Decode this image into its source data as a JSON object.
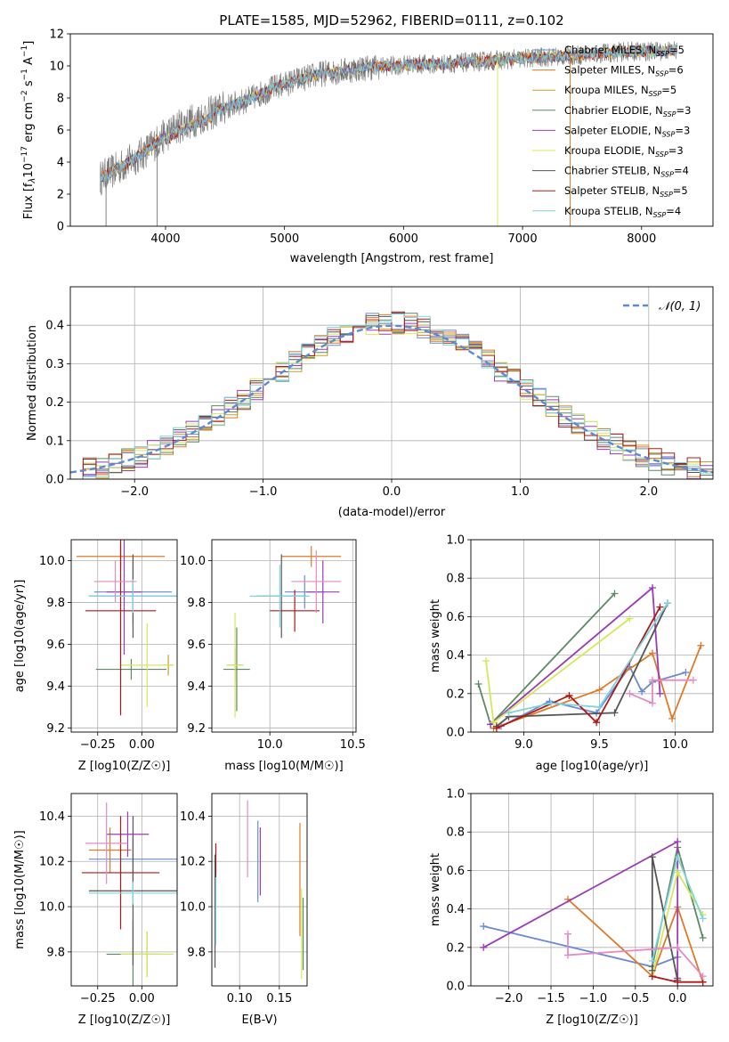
{
  "colors": {
    "Chabrier MILES": "#6a8ad6",
    "Salpeter MILES": "#e07a28",
    "Kroupa MILES": "#c9a227",
    "Chabrier ELODIE": "#5c8a63",
    "Salpeter ELODIE": "#9b3bb5",
    "Kroupa ELODIE": "#d5e85a",
    "Chabrier STELIB": "#555555",
    "Salpeter STELIB": "#b01818",
    "Kroupa STELIB": "#7fd4dc",
    "normal": "#5b8ad6",
    "extra_pink": "#e58ac3"
  },
  "chart_data": [
    {
      "id": "spectrum",
      "type": "line",
      "title": "PLATE=1585, MJD=52962, FIBERID=0111, z=0.102",
      "xlabel": "wavelength [Angstrom, rest frame]",
      "ylabel": "Flux [fλ10^-17 erg cm^-2 s^-1 A^-1]",
      "xlim": [
        3200,
        8600
      ],
      "ylim": [
        0,
        12
      ],
      "xticks": [
        4000,
        5000,
        6000,
        7000,
        8000
      ],
      "yticks": [
        0,
        2,
        4,
        6,
        8,
        10,
        12
      ],
      "grid": false,
      "legend_placement": "top-right",
      "legend": [
        {
          "series": "Chabrier MILES",
          "label": "Chabrier MILES, N",
          "sub": "SSP",
          "tail": "=5"
        },
        {
          "series": "Salpeter MILES",
          "label": "Salpeter MILES, N",
          "sub": "SSP",
          "tail": "=6"
        },
        {
          "series": "Kroupa MILES",
          "label": "Kroupa MILES, N",
          "sub": "SSP",
          "tail": "=5"
        },
        {
          "series": "Chabrier ELODIE",
          "label": "Chabrier ELODIE, N",
          "sub": "SSP",
          "tail": "=3"
        },
        {
          "series": "Salpeter ELODIE",
          "label": "Salpeter ELODIE, N",
          "sub": "SSP",
          "tail": "=3"
        },
        {
          "series": "Kroupa ELODIE",
          "label": "Kroupa ELODIE, N",
          "sub": "SSP",
          "tail": "=3"
        },
        {
          "series": "Chabrier STELIB",
          "label": "Chabrier STELIB, N",
          "sub": "SSP",
          "tail": "=4"
        },
        {
          "series": "Salpeter STELIB",
          "label": "Salpeter STELIB, N",
          "sub": "SSP",
          "tail": "=5"
        },
        {
          "series": "Kroupa STELIB",
          "label": "Kroupa STELIB, N",
          "sub": "SSP",
          "tail": "=4"
        }
      ],
      "data_trend": {
        "x": [
          3450,
          3600,
          3800,
          3950,
          4100,
          4300,
          4500,
          4700,
          4900,
          5100,
          5300,
          5500,
          5700,
          5900,
          6100,
          6300,
          6500,
          6700,
          6900,
          7100,
          7300,
          7500,
          7700,
          7900,
          8100,
          8300
        ],
        "y": [
          3.0,
          3.6,
          4.5,
          5.4,
          6.2,
          6.8,
          7.4,
          7.9,
          8.6,
          9.1,
          9.5,
          9.7,
          9.9,
          10.0,
          10.1,
          10.1,
          10.2,
          10.3,
          10.4,
          10.5,
          10.6,
          10.7,
          10.8,
          10.9,
          10.9,
          11.0
        ]
      }
    },
    {
      "id": "residuals",
      "type": "line",
      "xlabel": "(data-model)/error",
      "ylabel": "Normed distribution",
      "xlim": [
        -2.5,
        2.5
      ],
      "ylim": [
        0,
        0.5
      ],
      "xticks": [
        -2,
        -1,
        0,
        1,
        2
      ],
      "yticks": [
        0.0,
        0.1,
        0.2,
        0.3,
        0.4
      ],
      "grid": true,
      "legend_placement": "top-right",
      "legend": [
        {
          "series": "normal",
          "label": "𝒩(0, 1)"
        }
      ],
      "note": "step histograms of the nine models plus a dashed N(0,1) curve"
    },
    {
      "id": "z-age",
      "type": "scatter",
      "xlabel": "Z [log10(Z/Z☉)]",
      "ylabel": "age  [log10(age/yr)]",
      "xlim": [
        -0.4,
        0.2
      ],
      "ylim": [
        9.18,
        10.1
      ],
      "xticks": [
        -0.25,
        0.0
      ],
      "yticks": [
        9.2,
        9.4,
        9.6,
        9.8,
        10.0
      ],
      "grid": true,
      "errorbars": [
        {
          "series": "Chabrier MILES",
          "x": -0.05,
          "xerr": 0.22,
          "y": 9.85,
          "yerr": 0.15
        },
        {
          "series": "Salpeter MILES",
          "x": -0.12,
          "xerr": 0.25,
          "y": 10.02,
          "yerr": 0.05
        },
        {
          "series": "Kroupa MILES",
          "x": 0.15,
          "xerr": 0.03,
          "y": 9.5,
          "yerr": 0.05
        },
        {
          "series": "Chabrier ELODIE",
          "x": -0.06,
          "xerr": 0.2,
          "y": 9.48,
          "yerr": 0.05
        },
        {
          "series": "Salpeter ELODIE",
          "x": -0.1,
          "xerr": 0.1,
          "y": 9.85,
          "yerr": 0.3
        },
        {
          "series": "Kroupa ELODIE",
          "x": 0.03,
          "xerr": 0.15,
          "y": 9.5,
          "yerr": 0.2
        },
        {
          "series": "Chabrier STELIB",
          "x": -0.05,
          "xerr": 0.25,
          "y": 9.83,
          "yerr": 0.2
        },
        {
          "series": "Salpeter STELIB",
          "x": -0.12,
          "xerr": 0.2,
          "y": 9.76,
          "yerr": 0.5
        },
        {
          "series": "Kroupa STELIB",
          "x": -0.05,
          "xerr": 0.25,
          "y": 9.83,
          "yerr": 0.08
        },
        {
          "series": "extra_pink",
          "x": -0.15,
          "xerr": 0.12,
          "y": 9.9,
          "yerr": 0.1
        }
      ]
    },
    {
      "id": "mass-age",
      "type": "scatter",
      "xlabel": "mass [log10(M/M☉)]",
      "ylabel": "",
      "xlim": [
        9.65,
        10.52
      ],
      "ylim": [
        9.18,
        10.1
      ],
      "xticks": [
        10.0,
        10.5
      ],
      "yticks": [
        9.2,
        9.4,
        9.6,
        9.8,
        10.0
      ],
      "grid": true,
      "errorbars": [
        {
          "series": "Chabrier MILES",
          "x": 10.21,
          "xerr": 0.12,
          "y": 9.85,
          "yerr": 0.08
        },
        {
          "series": "Salpeter MILES",
          "x": 10.25,
          "xerr": 0.18,
          "y": 10.02,
          "yerr": 0.05
        },
        {
          "series": "Kroupa MILES",
          "x": 9.79,
          "xerr": 0.05,
          "y": 9.5,
          "yerr": 0.08
        },
        {
          "series": "Chabrier ELODIE",
          "x": 9.8,
          "xerr": 0.08,
          "y": 9.48,
          "yerr": 0.2
        },
        {
          "series": "Salpeter ELODIE",
          "x": 10.32,
          "xerr": 0.1,
          "y": 9.85,
          "yerr": 0.15
        },
        {
          "series": "Kroupa ELODIE",
          "x": 9.79,
          "xerr": 0.05,
          "y": 9.5,
          "yerr": 0.25
        },
        {
          "series": "Chabrier STELIB",
          "x": 10.07,
          "xerr": 0.15,
          "y": 9.83,
          "yerr": 0.2
        },
        {
          "series": "Salpeter STELIB",
          "x": 10.15,
          "xerr": 0.15,
          "y": 9.76,
          "yerr": 0.1
        },
        {
          "series": "Kroupa STELIB",
          "x": 10.06,
          "xerr": 0.18,
          "y": 9.83,
          "yerr": 0.15
        },
        {
          "series": "extra_pink",
          "x": 10.28,
          "xerr": 0.15,
          "y": 9.9,
          "yerr": 0.15
        }
      ]
    },
    {
      "id": "age-weight",
      "type": "line",
      "xlabel": "age  [log10(age/yr)]",
      "ylabel": "mass weight",
      "xlim": [
        8.65,
        10.25
      ],
      "ylim": [
        0,
        1.0
      ],
      "xticks": [
        9.0,
        9.5,
        10.0
      ],
      "yticks": [
        0.0,
        0.2,
        0.4,
        0.6,
        0.8,
        1.0
      ],
      "grid": true,
      "series": [
        {
          "series": "Chabrier MILES",
          "x": [
            8.85,
            9.17,
            9.48,
            9.7,
            9.78,
            9.85,
            10.07
          ],
          "y": [
            0.03,
            0.16,
            0.1,
            0.34,
            0.21,
            0.26,
            0.31
          ]
        },
        {
          "series": "Salpeter MILES",
          "x": [
            8.8,
            9.5,
            9.85,
            9.98,
            10.17
          ],
          "y": [
            0.02,
            0.22,
            0.41,
            0.07,
            0.45
          ]
        },
        {
          "series": "Chabrier ELODIE",
          "x": [
            8.7,
            8.78,
            9.6
          ],
          "y": [
            0.25,
            0.04,
            0.72
          ]
        },
        {
          "series": "Salpeter ELODIE",
          "x": [
            8.78,
            9.85,
            9.9
          ],
          "y": [
            0.04,
            0.75,
            0.2
          ]
        },
        {
          "series": "Kroupa ELODIE",
          "x": [
            8.75,
            8.8,
            9.7
          ],
          "y": [
            0.37,
            0.05,
            0.59
          ]
        },
        {
          "series": "Chabrier STELIB",
          "x": [
            8.82,
            8.9,
            9.6,
            9.95
          ],
          "y": [
            0.03,
            0.08,
            0.1,
            0.67
          ]
        },
        {
          "series": "Salpeter STELIB",
          "x": [
            8.82,
            9.3,
            9.48,
            9.9
          ],
          "y": [
            0.02,
            0.19,
            0.05,
            0.65
          ]
        },
        {
          "series": "Kroupa STELIB",
          "x": [
            8.9,
            9.18,
            9.5,
            9.95
          ],
          "y": [
            0.1,
            0.15,
            0.13,
            0.67
          ]
        },
        {
          "series": "extra_pink",
          "x": [
            9.7,
            9.85,
            9.85,
            10.12
          ],
          "y": [
            0.2,
            0.15,
            0.27,
            0.27
          ]
        }
      ]
    },
    {
      "id": "z-mass",
      "type": "scatter",
      "xlabel": "Z [log10(Z/Z☉)]",
      "ylabel": "mass [log10(M/M☉)]",
      "xlim": [
        -0.4,
        0.2
      ],
      "ylim": [
        9.65,
        10.5
      ],
      "xticks": [
        -0.25,
        0.0
      ],
      "yticks": [
        9.8,
        10.0,
        10.2,
        10.4
      ],
      "grid": true,
      "errorbars": [
        {
          "series": "Chabrier MILES",
          "x": -0.05,
          "xerr": 0.25,
          "y": 10.21,
          "yerr": 0.1
        },
        {
          "series": "Salpeter MILES",
          "x": -0.18,
          "xerr": 0.12,
          "y": 10.25,
          "yerr": 0.1
        },
        {
          "series": "Kroupa MILES",
          "x": 0.03,
          "xerr": 0.15,
          "y": 9.79,
          "yerr": 0.1
        },
        {
          "series": "Chabrier ELODIE",
          "x": -0.05,
          "xerr": 0.15,
          "y": 9.79,
          "yerr": 0.15
        },
        {
          "series": "Salpeter ELODIE",
          "x": -0.08,
          "xerr": 0.12,
          "y": 10.32,
          "yerr": 0.1
        },
        {
          "series": "Kroupa ELODIE",
          "x": 0.03,
          "xerr": 0.15,
          "y": 9.79,
          "yerr": 0.1
        },
        {
          "series": "Chabrier STELIB",
          "x": -0.05,
          "xerr": 0.25,
          "y": 10.07,
          "yerr": 0.33
        },
        {
          "series": "Salpeter STELIB",
          "x": -0.12,
          "xerr": 0.22,
          "y": 10.15,
          "yerr": 0.25
        },
        {
          "series": "Kroupa STELIB",
          "x": -0.05,
          "xerr": 0.25,
          "y": 10.06,
          "yerr": 0.05
        },
        {
          "series": "extra_pink",
          "x": -0.2,
          "xerr": 0.12,
          "y": 10.28,
          "yerr": 0.18
        }
      ]
    },
    {
      "id": "ebv-mass",
      "type": "scatter",
      "xlabel": "E(B-V)",
      "ylabel": "",
      "xlim": [
        0.065,
        0.185
      ],
      "ylim": [
        9.65,
        10.5
      ],
      "xticks": [
        0.1,
        0.15
      ],
      "yticks": [
        9.8,
        10.0,
        10.2,
        10.4
      ],
      "grid": true,
      "errorbars": [
        {
          "series": "Salpeter MILES",
          "x": 0.176,
          "y": 10.12,
          "yerr": 0.25
        },
        {
          "series": "Chabrier MILES",
          "x": 0.123,
          "y": 10.2,
          "yerr": 0.18
        },
        {
          "series": "Salpeter ELODIE",
          "x": 0.126,
          "y": 10.2,
          "yerr": 0.15
        },
        {
          "series": "Kroupa ELODIE",
          "x": 0.178,
          "y": 9.88,
          "yerr": 0.2
        },
        {
          "series": "Chabrier ELODIE",
          "x": 0.18,
          "y": 9.88,
          "yerr": 0.16
        },
        {
          "series": "extra_pink",
          "x": 0.11,
          "y": 10.3,
          "yerr": 0.17
        },
        {
          "series": "Salpeter STELIB",
          "x": 0.07,
          "y": 10.15,
          "yerr": 0.13
        },
        {
          "series": "Chabrier STELIB",
          "x": 0.069,
          "y": 9.98,
          "yerr": 0.25
        },
        {
          "series": "Kroupa STELIB",
          "x": 0.07,
          "y": 9.98,
          "yerr": 0.15
        }
      ]
    },
    {
      "id": "z-weight",
      "type": "line",
      "xlabel": "Z [log10(Z/Z☉)]",
      "ylabel": "mass weight",
      "xlim": [
        -2.45,
        0.42
      ],
      "ylim": [
        0,
        1.0
      ],
      "xticks": [
        -2.0,
        -1.5,
        -1.0,
        -0.5,
        0.0
      ],
      "yticks": [
        0.0,
        0.2,
        0.4,
        0.6,
        0.8,
        1.0
      ],
      "grid": true,
      "series": [
        {
          "series": "Chabrier MILES",
          "x": [
            -2.3,
            -0.3,
            0.0
          ],
          "y": [
            0.31,
            0.1,
            0.15
          ]
        },
        {
          "series": "Salpeter MILES",
          "x": [
            -1.3,
            -0.3,
            0.0,
            0.3
          ],
          "y": [
            0.45,
            0.05,
            0.41,
            0.02
          ]
        },
        {
          "series": "Chabrier ELODIE",
          "x": [
            -0.3,
            0.0,
            0.3
          ],
          "y": [
            0.1,
            0.72,
            0.25
          ]
        },
        {
          "series": "Salpeter ELODIE",
          "x": [
            -2.3,
            0.0,
            0.0
          ],
          "y": [
            0.2,
            0.75,
            0.04
          ]
        },
        {
          "series": "Kroupa ELODIE",
          "x": [
            -0.3,
            0.0,
            0.3
          ],
          "y": [
            0.05,
            0.59,
            0.37
          ]
        },
        {
          "series": "Chabrier STELIB",
          "x": [
            -0.3,
            -0.3,
            0.0
          ],
          "y": [
            0.08,
            0.67,
            0.03
          ]
        },
        {
          "series": "Salpeter STELIB",
          "x": [
            -0.3,
            0.0,
            0.3
          ],
          "y": [
            0.05,
            0.02,
            0.02
          ]
        },
        {
          "series": "Kroupa STELIB",
          "x": [
            -0.3,
            0.0,
            0.3
          ],
          "y": [
            0.13,
            0.67,
            0.35
          ]
        },
        {
          "series": "extra_pink",
          "x": [
            -1.3,
            -1.3,
            0.0,
            0.3
          ],
          "y": [
            0.27,
            0.16,
            0.2,
            0.05
          ]
        }
      ]
    }
  ]
}
